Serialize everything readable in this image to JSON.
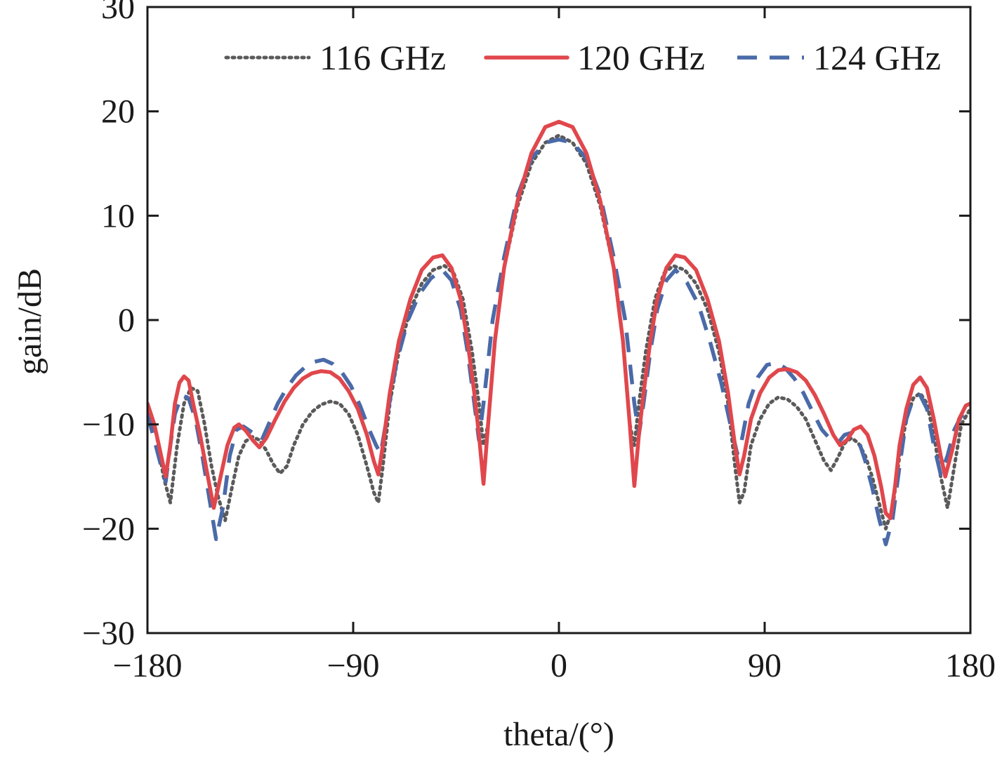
{
  "chart_data": {
    "type": "line",
    "xlabel": "theta/(°)",
    "ylabel": "gain/dB",
    "xlim": [
      -180,
      180
    ],
    "ylim": [
      -30,
      30
    ],
    "x_ticks": [
      -180,
      -90,
      0,
      90,
      180
    ],
    "y_ticks": [
      -30,
      -20,
      -10,
      0,
      10,
      20,
      30
    ],
    "x_tick_labels": [
      "−180",
      "−90",
      "0",
      "90",
      "180"
    ],
    "y_tick_labels": [
      "−30",
      "−20",
      "−10",
      "0",
      "10",
      "20",
      "30"
    ],
    "legend_position": "top-right",
    "grid": false,
    "series": [
      {
        "name": "116 GHz",
        "color": "#5a5a5a",
        "style": "dotted",
        "points": [
          [
            -180,
            -8.5
          ],
          [
            -176,
            -11
          ],
          [
            -173,
            -15
          ],
          [
            -170,
            -17.5
          ],
          [
            -167,
            -12
          ],
          [
            -164,
            -8
          ],
          [
            -161,
            -6.5
          ],
          [
            -158,
            -6.8
          ],
          [
            -155,
            -10
          ],
          [
            -152,
            -14
          ],
          [
            -149,
            -17
          ],
          [
            -146,
            -19.2
          ],
          [
            -143,
            -16
          ],
          [
            -140,
            -13
          ],
          [
            -137,
            -11.6
          ],
          [
            -134,
            -11.2
          ],
          [
            -131,
            -11.5
          ],
          [
            -128,
            -12.5
          ],
          [
            -125,
            -13.8
          ],
          [
            -122,
            -14.7
          ],
          [
            -119,
            -14
          ],
          [
            -116,
            -12
          ],
          [
            -112,
            -10
          ],
          [
            -108,
            -8.8
          ],
          [
            -104,
            -8.1
          ],
          [
            -100,
            -7.8
          ],
          [
            -96,
            -8
          ],
          [
            -92,
            -9
          ],
          [
            -88,
            -11
          ],
          [
            -84,
            -14
          ],
          [
            -81,
            -16.5
          ],
          [
            -79,
            -17.5
          ],
          [
            -77,
            -14
          ],
          [
            -74,
            -8
          ],
          [
            -70,
            -3
          ],
          [
            -65,
            1
          ],
          [
            -60,
            3.5
          ],
          [
            -55,
            4.8
          ],
          [
            -50,
            5.2
          ],
          [
            -46,
            4.5
          ],
          [
            -42,
            2
          ],
          [
            -38,
            -3
          ],
          [
            -35,
            -8
          ],
          [
            -33,
            -12
          ],
          [
            -31,
            -10
          ],
          [
            -28,
            -2
          ],
          [
            -24,
            5
          ],
          [
            -18,
            11
          ],
          [
            -12,
            15
          ],
          [
            -6,
            17
          ],
          [
            0,
            17.7
          ],
          [
            6,
            17
          ],
          [
            12,
            15
          ],
          [
            18,
            11
          ],
          [
            24,
            5
          ],
          [
            28,
            -2
          ],
          [
            31,
            -10
          ],
          [
            33,
            -12
          ],
          [
            35,
            -8
          ],
          [
            38,
            -3
          ],
          [
            42,
            2
          ],
          [
            46,
            4.5
          ],
          [
            50,
            5.2
          ],
          [
            55,
            4.8
          ],
          [
            60,
            3.5
          ],
          [
            65,
            1
          ],
          [
            70,
            -3
          ],
          [
            74,
            -8
          ],
          [
            77,
            -14
          ],
          [
            79,
            -17.5
          ],
          [
            81,
            -16.5
          ],
          [
            84,
            -12
          ],
          [
            88,
            -9.5
          ],
          [
            92,
            -8
          ],
          [
            96,
            -7.4
          ],
          [
            100,
            -7.6
          ],
          [
            104,
            -8.3
          ],
          [
            108,
            -9.5
          ],
          [
            112,
            -11.5
          ],
          [
            116,
            -13.5
          ],
          [
            119,
            -14.4
          ],
          [
            122,
            -13.2
          ],
          [
            125,
            -11.8
          ],
          [
            128,
            -11.3
          ],
          [
            131,
            -11.8
          ],
          [
            134,
            -13
          ],
          [
            137,
            -15
          ],
          [
            140,
            -17.5
          ],
          [
            143,
            -20
          ],
          [
            146,
            -18
          ],
          [
            149,
            -13
          ],
          [
            152,
            -9.5
          ],
          [
            155,
            -7.5
          ],
          [
            158,
            -7
          ],
          [
            161,
            -8
          ],
          [
            164,
            -11
          ],
          [
            167,
            -15
          ],
          [
            170,
            -18
          ],
          [
            173,
            -14
          ],
          [
            176,
            -10
          ],
          [
            180,
            -8.5
          ]
        ]
      },
      {
        "name": "120 GHz",
        "color": "#e0474c",
        "style": "solid",
        "points": [
          [
            -180,
            -8
          ],
          [
            -177,
            -10
          ],
          [
            -174,
            -13
          ],
          [
            -172,
            -15
          ],
          [
            -170,
            -12
          ],
          [
            -168,
            -8
          ],
          [
            -166,
            -6
          ],
          [
            -164,
            -5.4
          ],
          [
            -162,
            -5.8
          ],
          [
            -160,
            -8
          ],
          [
            -157,
            -11
          ],
          [
            -154,
            -14.5
          ],
          [
            -151,
            -18
          ],
          [
            -148,
            -15
          ],
          [
            -145,
            -12
          ],
          [
            -142,
            -10.3
          ],
          [
            -140,
            -10
          ],
          [
            -137,
            -10.6
          ],
          [
            -134,
            -11.5
          ],
          [
            -131,
            -12.2
          ],
          [
            -128,
            -11.3
          ],
          [
            -124,
            -9.5
          ],
          [
            -120,
            -7.8
          ],
          [
            -116,
            -6.5
          ],
          [
            -112,
            -5.6
          ],
          [
            -108,
            -5.1
          ],
          [
            -104,
            -4.9
          ],
          [
            -100,
            -5
          ],
          [
            -96,
            -5.6
          ],
          [
            -92,
            -6.8
          ],
          [
            -88,
            -8.5
          ],
          [
            -84,
            -11
          ],
          [
            -81,
            -13.5
          ],
          [
            -79,
            -14.8
          ],
          [
            -77,
            -12
          ],
          [
            -74,
            -7
          ],
          [
            -70,
            -2
          ],
          [
            -65,
            2
          ],
          [
            -60,
            4.8
          ],
          [
            -55,
            6
          ],
          [
            -51,
            6.2
          ],
          [
            -47,
            5
          ],
          [
            -43,
            2
          ],
          [
            -40,
            -2
          ],
          [
            -37,
            -7
          ],
          [
            -35,
            -11
          ],
          [
            -33,
            -15.7
          ],
          [
            -31,
            -10
          ],
          [
            -28,
            -2
          ],
          [
            -24,
            5
          ],
          [
            -18,
            11.5
          ],
          [
            -12,
            16
          ],
          [
            -6,
            18.5
          ],
          [
            0,
            19
          ],
          [
            6,
            18.5
          ],
          [
            12,
            16
          ],
          [
            18,
            11.5
          ],
          [
            24,
            5
          ],
          [
            28,
            -2
          ],
          [
            31,
            -10
          ],
          [
            33,
            -15.9
          ],
          [
            35,
            -11
          ],
          [
            37,
            -7
          ],
          [
            40,
            -2
          ],
          [
            43,
            2
          ],
          [
            47,
            5
          ],
          [
            51,
            6.2
          ],
          [
            55,
            6
          ],
          [
            60,
            4.8
          ],
          [
            65,
            2
          ],
          [
            70,
            -2
          ],
          [
            74,
            -7
          ],
          [
            77,
            -12
          ],
          [
            79,
            -14.8
          ],
          [
            81,
            -13
          ],
          [
            84,
            -9.5
          ],
          [
            88,
            -7
          ],
          [
            92,
            -5.5
          ],
          [
            96,
            -4.8
          ],
          [
            100,
            -4.7
          ],
          [
            104,
            -5
          ],
          [
            108,
            -5.8
          ],
          [
            112,
            -7.2
          ],
          [
            116,
            -9
          ],
          [
            120,
            -11
          ],
          [
            123,
            -12
          ],
          [
            126,
            -11.5
          ],
          [
            129,
            -10.5
          ],
          [
            132,
            -10.2
          ],
          [
            135,
            -11
          ],
          [
            138,
            -13
          ],
          [
            141,
            -16
          ],
          [
            143,
            -18.5
          ],
          [
            145,
            -19
          ],
          [
            147,
            -16
          ],
          [
            149,
            -12
          ],
          [
            152,
            -8.5
          ],
          [
            155,
            -6.2
          ],
          [
            158,
            -5.5
          ],
          [
            161,
            -6.5
          ],
          [
            164,
            -9.5
          ],
          [
            167,
            -13
          ],
          [
            169,
            -15
          ],
          [
            172,
            -12.5
          ],
          [
            175,
            -9.5
          ],
          [
            178,
            -8.2
          ],
          [
            180,
            -8
          ]
        ]
      },
      {
        "name": "124 GHz",
        "color": "#4a6aa8",
        "style": "dashed",
        "points": [
          [
            -180,
            -9
          ],
          [
            -177,
            -11.5
          ],
          [
            -174,
            -14
          ],
          [
            -172,
            -15.5
          ],
          [
            -170,
            -12
          ],
          [
            -168,
            -9
          ],
          [
            -165,
            -7.2
          ],
          [
            -162,
            -7.5
          ],
          [
            -159,
            -9.5
          ],
          [
            -156,
            -13
          ],
          [
            -153,
            -17
          ],
          [
            -150,
            -21
          ],
          [
            -147,
            -18
          ],
          [
            -144,
            -13
          ],
          [
            -141,
            -10.5
          ],
          [
            -138,
            -10.2
          ],
          [
            -134,
            -10.8
          ],
          [
            -130,
            -11.5
          ],
          [
            -127,
            -10
          ],
          [
            -123,
            -8
          ],
          [
            -119,
            -6.5
          ],
          [
            -115,
            -5.3
          ],
          [
            -111,
            -4.5
          ],
          [
            -107,
            -4
          ],
          [
            -103,
            -3.8
          ],
          [
            -99,
            -4.2
          ],
          [
            -95,
            -5
          ],
          [
            -91,
            -6.3
          ],
          [
            -87,
            -8.2
          ],
          [
            -83,
            -10.5
          ],
          [
            -80,
            -12
          ],
          [
            -78,
            -12.8
          ],
          [
            -75,
            -9
          ],
          [
            -71,
            -4
          ],
          [
            -66,
            0
          ],
          [
            -61,
            2.5
          ],
          [
            -56,
            4
          ],
          [
            -51,
            4.8
          ],
          [
            -47,
            3.8
          ],
          [
            -43,
            1
          ],
          [
            -40,
            -3
          ],
          [
            -37,
            -8
          ],
          [
            -35,
            -11.5
          ],
          [
            -33,
            -8
          ],
          [
            -29,
            0
          ],
          [
            -24,
            6
          ],
          [
            -18,
            12
          ],
          [
            -12,
            15.5
          ],
          [
            -6,
            17
          ],
          [
            0,
            17.3
          ],
          [
            6,
            17
          ],
          [
            12,
            15.5
          ],
          [
            18,
            12
          ],
          [
            24,
            6
          ],
          [
            29,
            0
          ],
          [
            33,
            -8
          ],
          [
            35,
            -11
          ],
          [
            37,
            -8
          ],
          [
            40,
            -3
          ],
          [
            43,
            1
          ],
          [
            47,
            3.8
          ],
          [
            51,
            4.8
          ],
          [
            56,
            3.6
          ],
          [
            61,
            1.5
          ],
          [
            66,
            -2
          ],
          [
            71,
            -6
          ],
          [
            75,
            -10
          ],
          [
            78,
            -12.8
          ],
          [
            80,
            -11.5
          ],
          [
            83,
            -8
          ],
          [
            87,
            -5.5
          ],
          [
            91,
            -4.3
          ],
          [
            95,
            -4.1
          ],
          [
            99,
            -4.6
          ],
          [
            103,
            -5.6
          ],
          [
            107,
            -7
          ],
          [
            111,
            -8.8
          ],
          [
            115,
            -10.5
          ],
          [
            119,
            -11.5
          ],
          [
            122,
            -11.8
          ],
          [
            125,
            -11
          ],
          [
            128,
            -10.8
          ],
          [
            131,
            -11.5
          ],
          [
            134,
            -13.5
          ],
          [
            137,
            -16
          ],
          [
            140,
            -19
          ],
          [
            143,
            -21.5
          ],
          [
            146,
            -19
          ],
          [
            149,
            -14
          ],
          [
            152,
            -9.5
          ],
          [
            155,
            -7.5
          ],
          [
            158,
            -7.2
          ],
          [
            161,
            -8.5
          ],
          [
            164,
            -12
          ],
          [
            167,
            -14.8
          ],
          [
            170,
            -13
          ],
          [
            173,
            -10.5
          ],
          [
            176,
            -9.2
          ],
          [
            180,
            -9
          ]
        ]
      }
    ]
  }
}
